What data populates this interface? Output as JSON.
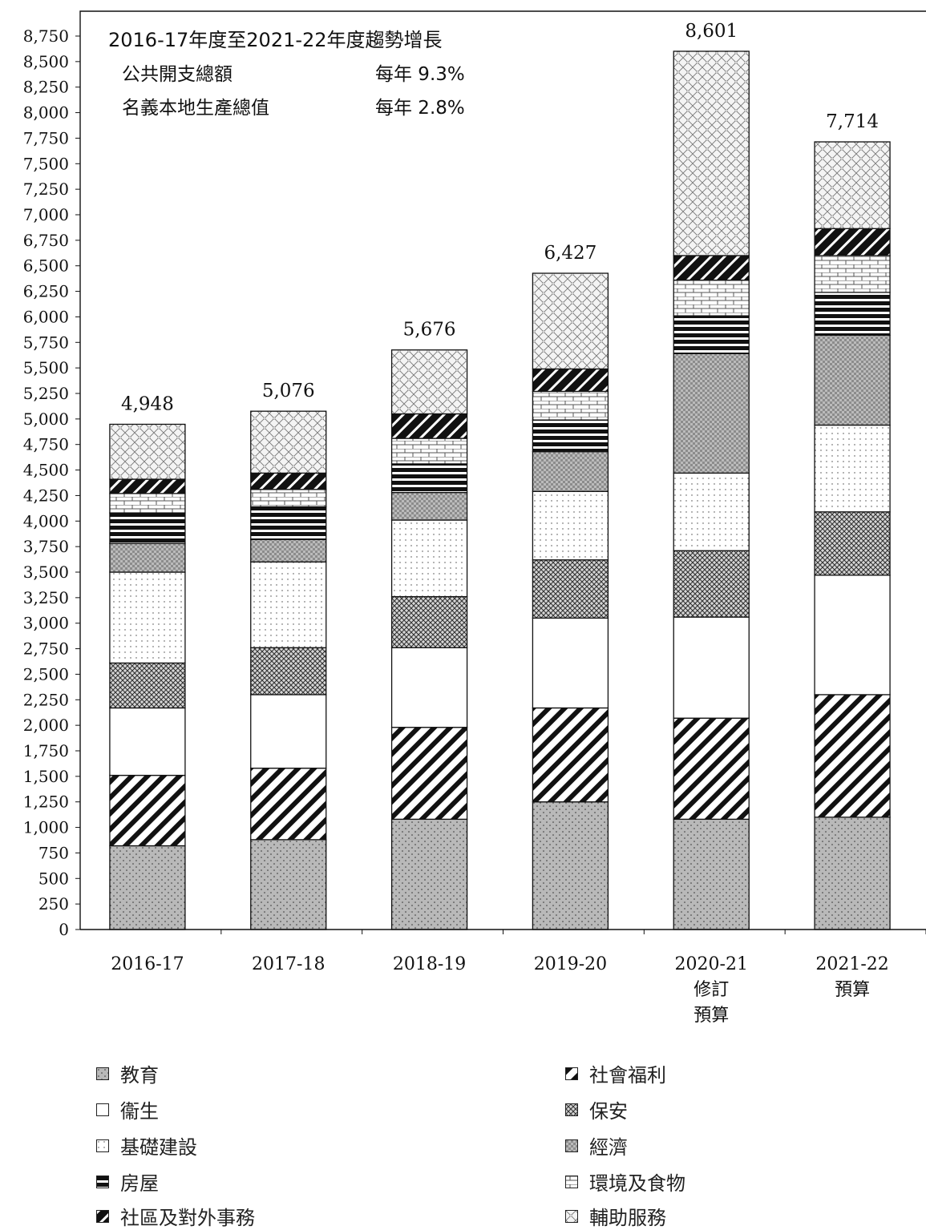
{
  "chart_data": {
    "type": "bar",
    "stacked": true,
    "categories": [
      "2016-17",
      "2017-18",
      "2018-19",
      "2019-20",
      "2020-21\n修訂\n預算",
      "2021-22\n預算"
    ],
    "totals": [
      4948,
      5076,
      5676,
      6427,
      8601,
      7714
    ],
    "total_labels": [
      "4,948",
      "5,076",
      "5,676",
      "6,427",
      "8,601",
      "7,714"
    ],
    "ylim": [
      0,
      8750
    ],
    "yticks": [
      0,
      250,
      500,
      750,
      1000,
      1250,
      1500,
      1750,
      2000,
      2250,
      2500,
      2750,
      3000,
      3250,
      3500,
      3750,
      4000,
      4250,
      4500,
      4750,
      5000,
      5250,
      5500,
      5750,
      6000,
      6250,
      6500,
      6750,
      7000,
      7250,
      7500,
      7750,
      8000,
      8250,
      8500,
      8750
    ],
    "ytick_labels": [
      "0",
      "250",
      "500",
      "750",
      "1,000",
      "1,250",
      "1,500",
      "1,750",
      "2,000",
      "2,250",
      "2,500",
      "2,750",
      "3,000",
      "3,250",
      "3,500",
      "3,750",
      "4,000",
      "4,250",
      "4,500",
      "4,750",
      "5,000",
      "5,250",
      "5,500",
      "5,750",
      "6,000",
      "6,250",
      "6,500",
      "6,750",
      "7,000",
      "7,250",
      "7,500",
      "7,750",
      "8,000",
      "8,250",
      "8,500",
      "8,750"
    ],
    "series": [
      {
        "name": "教育",
        "pattern": "dots-gray",
        "values": [
          820,
          880,
          1080,
          1250,
          1080,
          1100
        ]
      },
      {
        "name": "社會福利",
        "pattern": "diagonal",
        "values": [
          690,
          700,
          900,
          920,
          990,
          1200
        ]
      },
      {
        "name": "衞生",
        "pattern": "white",
        "values": [
          660,
          720,
          780,
          880,
          990,
          1170
        ]
      },
      {
        "name": "保安",
        "pattern": "crosshatch-dense",
        "values": [
          440,
          460,
          500,
          570,
          650,
          620
        ]
      },
      {
        "name": "基礎建設",
        "pattern": "sparse-dots",
        "values": [
          890,
          840,
          750,
          670,
          760,
          850
        ]
      },
      {
        "name": "經濟",
        "pattern": "checker-gray",
        "values": [
          280,
          220,
          270,
          390,
          1170,
          880
        ]
      },
      {
        "name": "房屋",
        "pattern": "horizontal-black",
        "values": [
          300,
          320,
          280,
          310,
          370,
          420
        ]
      },
      {
        "name": "環境及食物",
        "pattern": "brick",
        "values": [
          190,
          170,
          250,
          280,
          350,
          360
        ]
      },
      {
        "name": "社區及對外事務",
        "pattern": "diagonal-black",
        "values": [
          140,
          160,
          240,
          220,
          240,
          264
        ]
      },
      {
        "name": "輔助服務",
        "pattern": "lattice",
        "values": [
          538,
          606,
          626,
          937,
          2001,
          850
        ]
      }
    ],
    "annotations": {
      "title": "2016-17年度至2021-22年度趨勢增長",
      "rows": [
        {
          "label": "公共開支總額",
          "value": "每年  9.3%"
        },
        {
          "label": "名義本地生產總值",
          "value": "每年  2.8%"
        }
      ]
    }
  },
  "legend": {
    "left": [
      "教育",
      "衞生",
      "基礎建設",
      "房屋",
      "社區及對外事務"
    ],
    "right": [
      "社會福利",
      "保安",
      "經濟",
      "環境及食物",
      "輔助服務"
    ]
  }
}
